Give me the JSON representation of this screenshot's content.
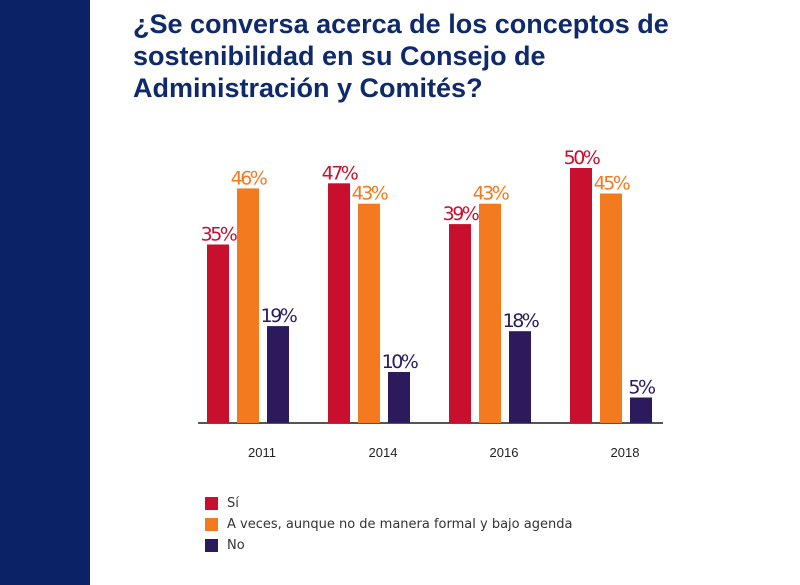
{
  "title": "¿Se conversa acerca de los conceptos de sostenibilidad en su Consejo de Administración y Comités?",
  "chart_data": {
    "type": "bar",
    "title": "¿Se conversa acerca de los conceptos de sostenibilidad en su Consejo de Administración y Comités?",
    "categories": [
      "2011",
      "2014",
      "2016",
      "2018"
    ],
    "series": [
      {
        "name": "Sí",
        "values": [
          35,
          47,
          39,
          50
        ],
        "labels": [
          "35%",
          "47%",
          "39%",
          "50%"
        ],
        "color": "#c8102e"
      },
      {
        "name": "A veces, aunque no de manera formal y bajo agenda",
        "values": [
          46,
          43,
          43,
          45
        ],
        "labels": [
          "46%",
          "43%",
          "43%",
          "45%"
        ],
        "color": "#f47a20"
      },
      {
        "name": "No",
        "values": [
          19,
          10,
          18,
          5
        ],
        "labels": [
          "19%",
          "10%",
          "18%",
          "5%"
        ],
        "color": "#2c1a5c"
      }
    ],
    "label_colors": [
      "#c8102e",
      "#f47a20",
      "#2c1a5c"
    ],
    "xlabel": "",
    "ylabel": "",
    "ylim": [
      0,
      56
    ],
    "grid": false,
    "legend_position": "bottom-left"
  },
  "colors": {
    "side_band": "#0b2266",
    "title": "#0f2a6b",
    "axis": "#555555"
  }
}
